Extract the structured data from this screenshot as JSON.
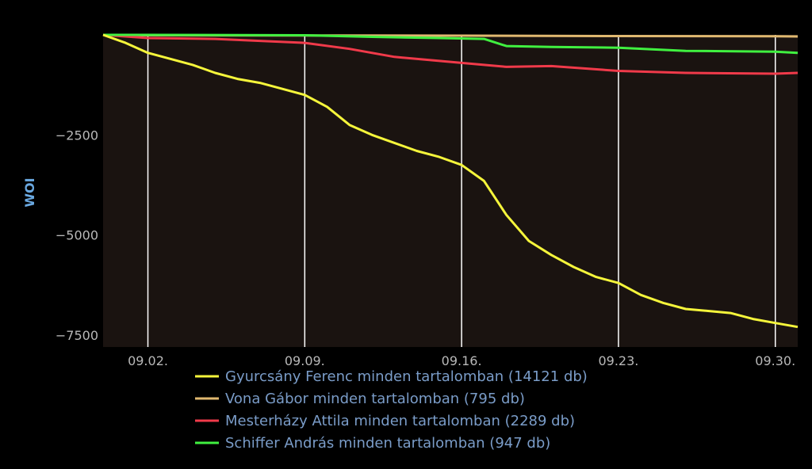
{
  "chart_data": {
    "type": "line",
    "ylabel": "WOI",
    "grid": "vertical",
    "legend_position": "bottom",
    "xlim": [
      "2014-08-31",
      "2014-10-01"
    ],
    "ylim": [
      -7800,
      0
    ],
    "x_ticks": [
      "2014-09-02",
      "2014-09-09",
      "2014-09-16",
      "2014-09-23",
      "2014-09-30"
    ],
    "x_tick_labels": [
      "09.02.",
      "09.09.",
      "09.16.",
      "09.23.",
      "09.30."
    ],
    "y_ticks": [
      -2500,
      -5000,
      -7500
    ],
    "y_tick_labels": [
      "−2500",
      "−5000",
      "−7500"
    ],
    "plot_background": "#1a1310",
    "series": [
      {
        "name": "Gyurcsány Ferenc minden tartalomban (14121 db)",
        "color": "#f5f53b",
        "x": [
          "2014-08-31",
          "2014-09-01",
          "2014-09-02",
          "2014-09-03",
          "2014-09-04",
          "2014-09-05",
          "2014-09-06",
          "2014-09-07",
          "2014-09-08",
          "2014-09-09",
          "2014-09-10",
          "2014-09-11",
          "2014-09-12",
          "2014-09-13",
          "2014-09-14",
          "2014-09-15",
          "2014-09-16",
          "2014-09-17",
          "2014-09-18",
          "2014-09-19",
          "2014-09-20",
          "2014-09-21",
          "2014-09-22",
          "2014-09-23",
          "2014-09-24",
          "2014-09-25",
          "2014-09-26",
          "2014-09-27",
          "2014-09-28",
          "2014-09-29",
          "2014-09-30",
          "2014-10-01"
        ],
        "y": [
          0,
          -200,
          -450,
          -600,
          -750,
          -950,
          -1100,
          -1200,
          -1350,
          -1500,
          -1800,
          -2250,
          -2500,
          -2700,
          -2900,
          -3050,
          -3250,
          -3650,
          -4500,
          -5150,
          -5500,
          -5800,
          -6050,
          -6200,
          -6500,
          -6700,
          -6850,
          -6900,
          -6950,
          -7100,
          -7200,
          -7300
        ]
      },
      {
        "name": "Vona Gábor minden tartalomban (795 db)",
        "color": "#e0b870",
        "x": [
          "2014-08-31",
          "2014-09-02",
          "2014-09-09",
          "2014-09-16",
          "2014-09-23",
          "2014-09-30",
          "2014-10-01"
        ],
        "y": [
          0,
          -10,
          -15,
          -20,
          -30,
          -35,
          -40
        ]
      },
      {
        "name": "Mesterházy Attila minden tartalomban (2289 db)",
        "color": "#f03a4a",
        "x": [
          "2014-08-31",
          "2014-09-02",
          "2014-09-05",
          "2014-09-07",
          "2014-09-09",
          "2014-09-11",
          "2014-09-13",
          "2014-09-16",
          "2014-09-18",
          "2014-09-20",
          "2014-09-23",
          "2014-09-26",
          "2014-09-30",
          "2014-10-01"
        ],
        "y": [
          0,
          -80,
          -100,
          -150,
          -200,
          -350,
          -550,
          -700,
          -800,
          -780,
          -900,
          -950,
          -970,
          -950
        ]
      },
      {
        "name": "Schiffer András minden tartalomban (947 db)",
        "color": "#40f040",
        "x": [
          "2014-08-31",
          "2014-09-02",
          "2014-09-09",
          "2014-09-12",
          "2014-09-15",
          "2014-09-17",
          "2014-09-18",
          "2014-09-20",
          "2014-09-23",
          "2014-09-26",
          "2014-09-30",
          "2014-10-01"
        ],
        "y": [
          0,
          0,
          -10,
          -50,
          -80,
          -100,
          -280,
          -300,
          -320,
          -400,
          -420,
          -450
        ]
      }
    ]
  }
}
